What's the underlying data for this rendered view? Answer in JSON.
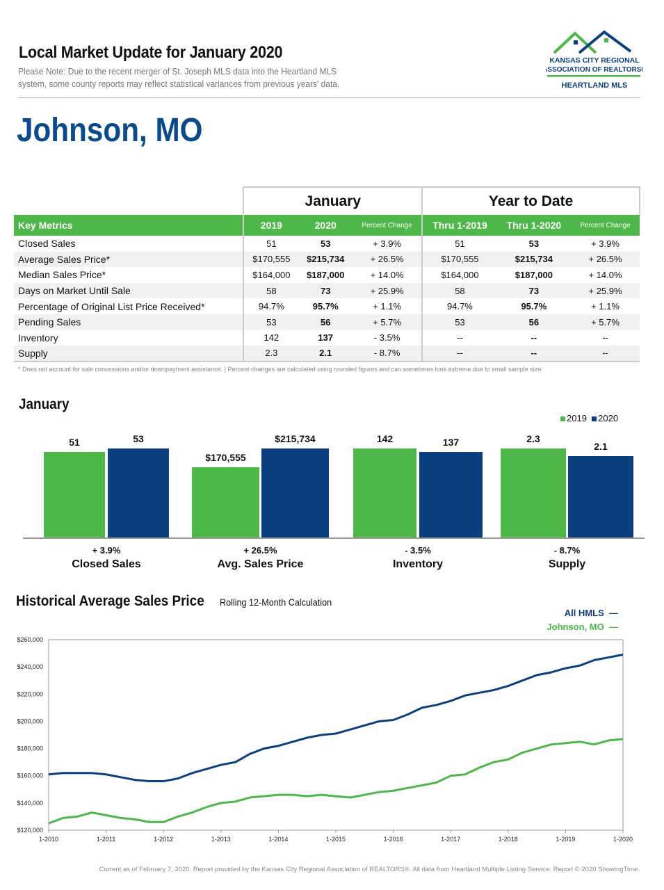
{
  "header": {
    "title": "Local Market Update for January 2020",
    "note": "Please Note: Due to the recent merger of St. Joseph MLS data into the Heartland MLS system, some county reports may reflect statistical variances from previous years' data.",
    "logo_text": [
      "KANSAS CITY REGIONAL",
      "ASSOCIATION OF REALTORS®",
      "HEARTLAND MLS"
    ]
  },
  "place": "Johnson, MO",
  "table": {
    "group1": "January",
    "group2": "Year to Date",
    "columns": [
      "Key Metrics",
      "2019",
      "2020",
      "Percent Change",
      "Thru 1-2019",
      "Thru 1-2020",
      "Percent Change"
    ],
    "rows": [
      [
        "Closed Sales",
        "51",
        "53",
        "+ 3.9%",
        "51",
        "53",
        "+ 3.9%"
      ],
      [
        "Average Sales Price*",
        "$170,555",
        "$215,734",
        "+ 26.5%",
        "$170,555",
        "$215,734",
        "+ 26.5%"
      ],
      [
        "Median Sales Price*",
        "$164,000",
        "$187,000",
        "+ 14.0%",
        "$164,000",
        "$187,000",
        "+ 14.0%"
      ],
      [
        "Days on Market Until Sale",
        "58",
        "73",
        "+ 25.9%",
        "58",
        "73",
        "+ 25.9%"
      ],
      [
        "Percentage of Original List Price Received*",
        "94.7%",
        "95.7%",
        "+ 1.1%",
        "94.7%",
        "95.7%",
        "+ 1.1%"
      ],
      [
        "Pending Sales",
        "53",
        "56",
        "+ 5.7%",
        "53",
        "56",
        "+ 5.7%"
      ],
      [
        "Inventory",
        "142",
        "137",
        "- 3.5%",
        "--",
        "--",
        "--"
      ],
      [
        "Supply",
        "2.3",
        "2.1",
        "- 8.7%",
        "--",
        "--",
        "--"
      ]
    ],
    "footnote": "* Does not account for sale concessions and/or downpayment assistance.  |  Percent changes are calculated using rounded figures and can sometimes look extreme due to small sample size."
  },
  "colors": {
    "green": "#4db748",
    "navy": "#0b3f7f"
  },
  "bar_section": {
    "title": "January",
    "legend": [
      "2019",
      "2020"
    ],
    "groups": [
      {
        "label": "Closed Sales",
        "change": "+ 3.9%",
        "v2019": 51,
        "v2020": 53,
        "l2019": "51",
        "l2020": "53"
      },
      {
        "label": "Avg. Sales Price",
        "change": "+ 26.5%",
        "v2019": 170555,
        "v2020": 215734,
        "l2019": "$170,555",
        "l2020": "$215,734"
      },
      {
        "label": "Inventory",
        "change": "- 3.5%",
        "v2019": 142,
        "v2020": 137,
        "l2019": "142",
        "l2020": "137"
      },
      {
        "label": "Supply",
        "change": "- 8.7%",
        "v2019": 2.3,
        "v2020": 2.1,
        "l2019": "2.3",
        "l2020": "2.1"
      }
    ]
  },
  "chart_data": {
    "type": "line",
    "title": "Historical Average Sales Price",
    "subtitle": "Rolling 12-Month Calculation",
    "legend_placement": "top-right",
    "ylim": [
      120000,
      260000
    ],
    "y_ticks": [
      "$120,000",
      "$140,000",
      "$160,000",
      "$180,000",
      "$200,000",
      "$220,000",
      "$240,000",
      "$260,000"
    ],
    "x_ticks": [
      "1-2010",
      "1-2011",
      "1-2012",
      "1-2013",
      "1-2014",
      "1-2015",
      "1-2016",
      "1-2017",
      "1-2018",
      "1-2019",
      "1-2020"
    ],
    "x_quarterly_from": "1-2010",
    "series": [
      {
        "name": "All HMLS",
        "color": "#0b3f7f",
        "values": [
          161000,
          162000,
          162000,
          162000,
          161000,
          159000,
          157000,
          156000,
          156000,
          158000,
          162000,
          165000,
          168000,
          170000,
          176000,
          180000,
          182000,
          185000,
          188000,
          190000,
          191000,
          194000,
          197000,
          200000,
          201000,
          205000,
          210000,
          212000,
          215000,
          219000,
          221000,
          223000,
          226000,
          230000,
          234000,
          236000,
          239000,
          241000,
          245000,
          247000,
          249000
        ]
      },
      {
        "name": "Johnson, MO",
        "color": "#4db748",
        "values": [
          125000,
          129000,
          130000,
          133000,
          131000,
          129000,
          128000,
          126000,
          126000,
          130000,
          133000,
          137000,
          140000,
          141000,
          144000,
          145000,
          146000,
          146000,
          145000,
          146000,
          145000,
          144000,
          146000,
          148000,
          149000,
          151000,
          153000,
          155000,
          160000,
          161000,
          166000,
          170000,
          172000,
          177000,
          180000,
          183000,
          184000,
          185000,
          183000,
          186000,
          187000
        ]
      }
    ]
  },
  "credit": "Current as of February 7, 2020. Report provided by the Kansas City Regional Association of REALTORS®. All data from Heartland Multiple Listing Service. Report © 2020 ShowingTime."
}
